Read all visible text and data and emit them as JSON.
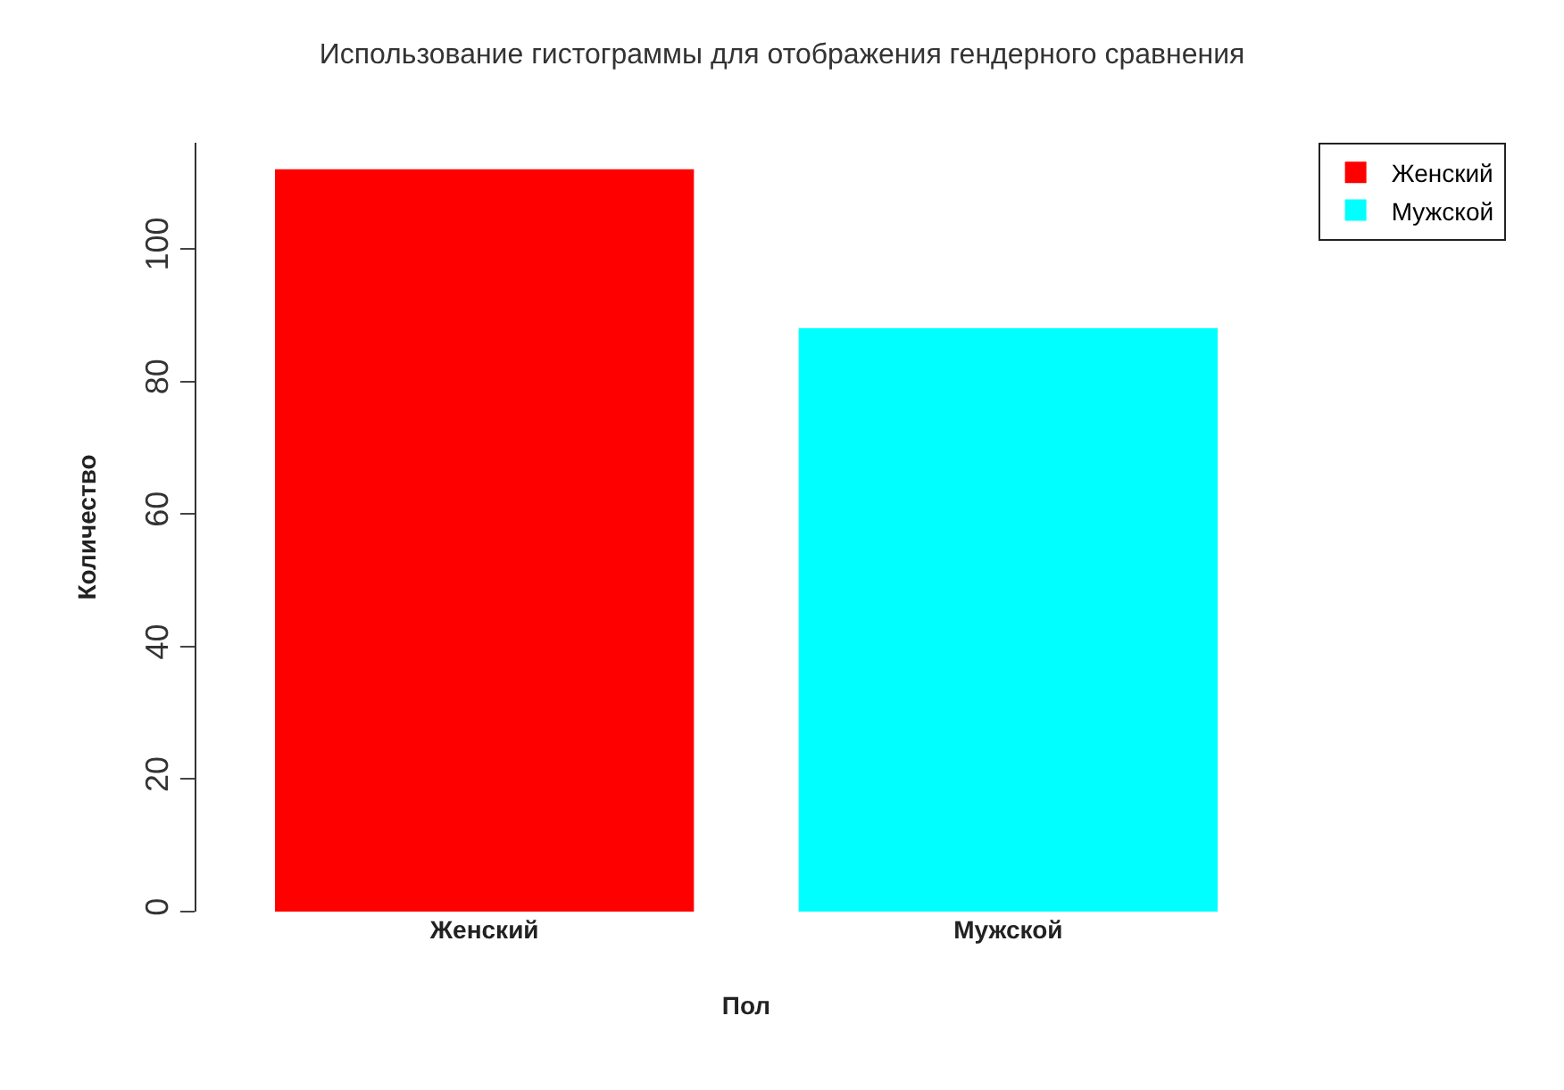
{
  "chart_data": {
    "type": "bar",
    "title": "Использование гистограммы для отображения гендерного сравнения",
    "xlabel": "Пол",
    "ylabel": "Количество",
    "categories": [
      "Женский",
      "Мужской"
    ],
    "series": [
      {
        "name": "Женский",
        "color": "#ff0000",
        "values": [
          112,
          null
        ]
      },
      {
        "name": "Мужской",
        "color": "#00ffff",
        "values": [
          null,
          88
        ]
      }
    ],
    "ylim": [
      0,
      116
    ],
    "yticks": [
      0,
      20,
      40,
      60,
      80,
      100
    ],
    "grid": false,
    "legend": "top right"
  }
}
